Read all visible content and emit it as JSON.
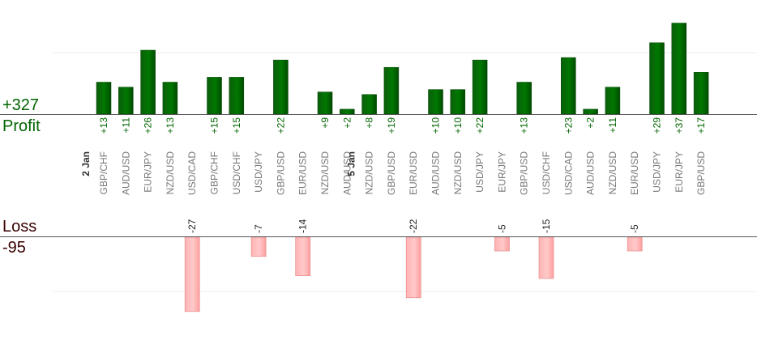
{
  "summary": {
    "profit_total": "+327",
    "profit_label": "Profit",
    "loss_label": "Loss",
    "loss_total": "-95"
  },
  "colors": {
    "profit_bar": "#006400",
    "loss_bar": "#ffb6b6",
    "profit_text": "#006400",
    "loss_text": "#3a0000",
    "category_text": "#777777"
  },
  "chart_data": {
    "type": "bar",
    "categories": [
      "GBP/CHF",
      "AUD/USD",
      "EUR/JPY",
      "NZD/USD",
      "USD/CAD",
      "GBP/CHF",
      "USD/CHF",
      "USD/JPY",
      "GBP/USD",
      "EUR/USD",
      "NZD/USD",
      "AUD/USD",
      "NZD/USD",
      "GBP/USD",
      "EUR/USD",
      "AUD/USD",
      "NZD/USD",
      "USD/JPY",
      "EUR/JPY",
      "GBP/USD",
      "USD/CHF",
      "USD/CAD",
      "AUD/USD",
      "NZD/USD",
      "EUR/USD",
      "USD/JPY",
      "EUR/JPY",
      "GBP/USD"
    ],
    "date_markers": [
      {
        "label": "2 Jan",
        "before_index": 0
      },
      {
        "label": "5 Jan",
        "before_index": 12
      }
    ],
    "series": [
      {
        "values": [
          13,
          11,
          26,
          13,
          null,
          15,
          15,
          null,
          22,
          null,
          9,
          2,
          8,
          19,
          null,
          10,
          10,
          22,
          null,
          13,
          null,
          23,
          2,
          11,
          null,
          29,
          37,
          17
        ]
      },
      {
        "values": [
          null,
          null,
          null,
          null,
          -27,
          null,
          null,
          -7,
          null,
          -14,
          null,
          null,
          null,
          null,
          -22,
          null,
          null,
          null,
          -5,
          null,
          -15,
          null,
          null,
          null,
          -5,
          null,
          null,
          null
        ]
      }
    ],
    "value_labels": [
      "+13",
      "+11",
      "+26",
      "+13",
      "-27",
      "+15",
      "+15",
      "-7",
      "+22",
      "-14",
      "+9",
      "+2",
      "+8",
      "+19",
      "-22",
      "+10",
      "+10",
      "+22",
      "-5",
      "+13",
      "-15",
      "+23",
      "+2",
      "+11",
      "-5",
      "+29",
      "+37",
      "+17"
    ],
    "ylim_profit": [
      0,
      25
    ],
    "ylim_loss": [
      -20,
      0
    ],
    "grid": true
  }
}
